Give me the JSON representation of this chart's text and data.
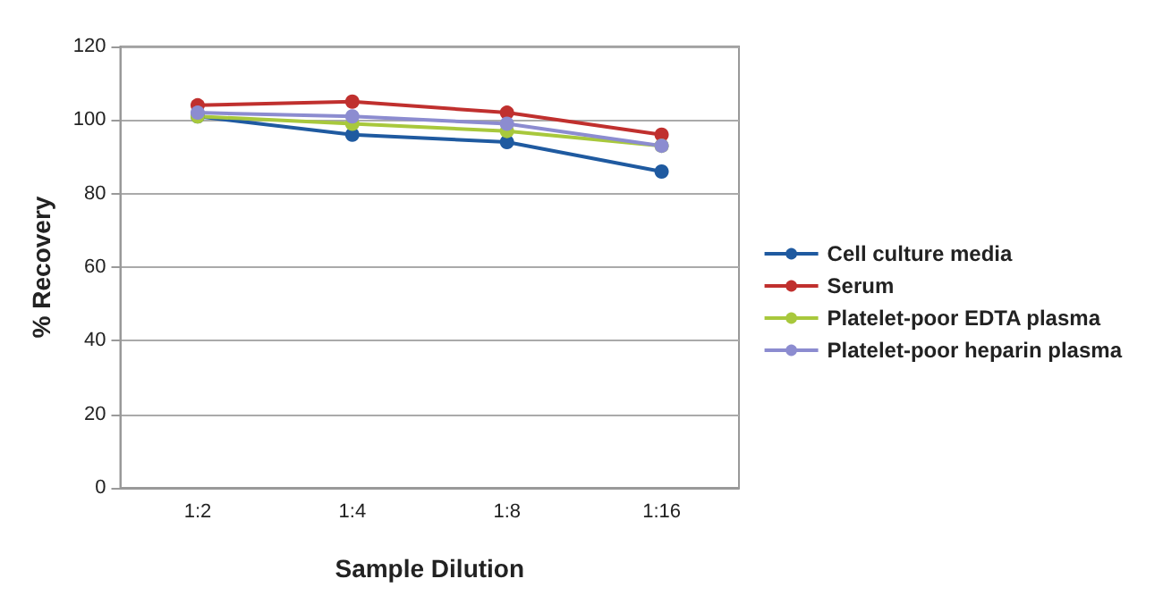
{
  "chart_data": {
    "type": "line",
    "xlabel": "Sample Dilution",
    "ylabel": "% Recovery",
    "categories": [
      "1:2",
      "1:4",
      "1:8",
      "1:16"
    ],
    "series": [
      {
        "name": "Cell culture media",
        "color": "#1f5aa0",
        "values": [
          101,
          96,
          94,
          86
        ]
      },
      {
        "name": "Serum",
        "color": "#c0302e",
        "values": [
          104,
          105,
          102,
          96
        ]
      },
      {
        "name": "Platelet-poor EDTA plasma",
        "color": "#a8c83c",
        "values": [
          101,
          99,
          97,
          93
        ]
      },
      {
        "name": "Platelet-poor heparin plasma",
        "color": "#8c8cd0",
        "values": [
          102,
          101,
          99,
          93
        ]
      }
    ],
    "ylim": [
      0,
      120
    ],
    "yticks": [
      0,
      20,
      40,
      60,
      80,
      100,
      120
    ],
    "grid": "y",
    "legend": "right",
    "marker": "circle",
    "line_style": "solid"
  }
}
